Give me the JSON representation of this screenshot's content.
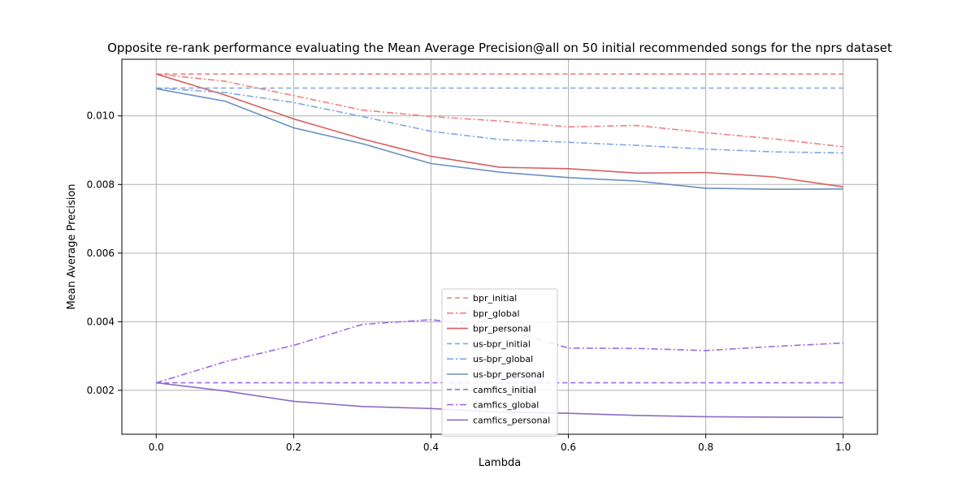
{
  "chart_data": {
    "type": "line",
    "title": "Opposite re-rank performance evaluating the Mean Average Precision@all on 50 initial recommended songs for the nprs dataset",
    "xlabel": "Lambda",
    "ylabel": "Mean Average Precision",
    "xlim": [
      -0.05,
      1.05
    ],
    "ylim": [
      0.00072,
      0.01165
    ],
    "x_ticks": [
      0.0,
      0.2,
      0.4,
      0.6,
      0.8,
      1.0
    ],
    "x_tick_labels": [
      "0.0",
      "0.2",
      "0.4",
      "0.6",
      "0.8",
      "1.0"
    ],
    "y_ticks": [
      0.002,
      0.004,
      0.006,
      0.008,
      0.01
    ],
    "y_tick_labels": [
      "0.002",
      "0.004",
      "0.006",
      "0.008",
      "0.010"
    ],
    "grid": true,
    "legend_position": "lower-center",
    "x": [
      0.0,
      0.1,
      0.2,
      0.3,
      0.4,
      0.5,
      0.6,
      0.7,
      0.8,
      0.9,
      1.0
    ],
    "series": [
      {
        "name": "bpr_initial",
        "color": "#f08080",
        "dash": "dashed",
        "values": [
          0.01122,
          0.01122,
          0.01122,
          0.01122,
          0.01122,
          0.01122,
          0.01122,
          0.01122,
          0.01122,
          0.01122,
          0.01122
        ]
      },
      {
        "name": "bpr_global",
        "color": "#f08080",
        "dash": "dashdot",
        "values": [
          0.01122,
          0.01101,
          0.01059,
          0.01017,
          0.00998,
          0.00985,
          0.00968,
          0.00972,
          0.00951,
          0.00933,
          0.0091
        ]
      },
      {
        "name": "bpr_personal",
        "color": "#d95f5f",
        "dash": "solid",
        "values": [
          0.01122,
          0.01061,
          0.00991,
          0.00933,
          0.00882,
          0.0085,
          0.00846,
          0.00833,
          0.00835,
          0.00822,
          0.00793
        ]
      },
      {
        "name": "us-bpr_initial",
        "color": "#7ea6e8",
        "dash": "dashed",
        "values": [
          0.01081,
          0.01081,
          0.01081,
          0.01081,
          0.01081,
          0.01081,
          0.01081,
          0.01081,
          0.01081,
          0.01081,
          0.01081
        ]
      },
      {
        "name": "us-bpr_global",
        "color": "#7ea6e8",
        "dash": "dashdot",
        "values": [
          0.01081,
          0.01068,
          0.01039,
          0.00998,
          0.00955,
          0.00931,
          0.00923,
          0.00914,
          0.00903,
          0.00895,
          0.00892
        ]
      },
      {
        "name": "us-bpr_personal",
        "color": "#6b8fc4",
        "dash": "solid",
        "values": [
          0.01079,
          0.01043,
          0.00965,
          0.00919,
          0.00861,
          0.00836,
          0.0082,
          0.0081,
          0.00789,
          0.00786,
          0.00787
        ]
      },
      {
        "name": "camfics_initial",
        "color": "#9b6be8",
        "dash": "dashed",
        "values": [
          0.00222,
          0.00222,
          0.00222,
          0.00222,
          0.00222,
          0.00222,
          0.00222,
          0.00222,
          0.00222,
          0.00222,
          0.00222
        ]
      },
      {
        "name": "camfics_global",
        "color": "#9b6be8",
        "dash": "dashdot",
        "values": [
          0.00222,
          0.00283,
          0.00331,
          0.00392,
          0.00406,
          0.00382,
          0.00323,
          0.00322,
          0.00316,
          0.00328,
          0.00338
        ]
      },
      {
        "name": "camfics_personal",
        "color": "#8a6cc4",
        "dash": "solid",
        "values": [
          0.00222,
          0.00198,
          0.00168,
          0.00153,
          0.00147,
          0.00137,
          0.00133,
          0.00127,
          0.00123,
          0.00122,
          0.00121
        ]
      }
    ]
  }
}
